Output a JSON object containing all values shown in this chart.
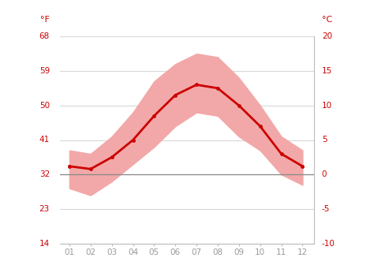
{
  "months": [
    1,
    2,
    3,
    4,
    5,
    6,
    7,
    8,
    9,
    10,
    11,
    12
  ],
  "month_labels": [
    "01",
    "02",
    "03",
    "04",
    "05",
    "06",
    "07",
    "08",
    "09",
    "10",
    "11",
    "12"
  ],
  "mean_temp_c": [
    1.2,
    0.8,
    2.5,
    5.0,
    8.5,
    11.5,
    13.0,
    12.5,
    10.0,
    7.0,
    3.0,
    1.2
  ],
  "max_temp_c": [
    3.5,
    3.0,
    5.5,
    9.0,
    13.5,
    16.0,
    17.5,
    17.0,
    14.0,
    10.0,
    5.5,
    3.5
  ],
  "min_temp_c": [
    -2.0,
    -3.0,
    -1.0,
    1.5,
    4.0,
    7.0,
    9.0,
    8.5,
    5.5,
    3.5,
    0.0,
    -1.5
  ],
  "ylim_c": [
    -10,
    20
  ],
  "yticks_c": [
    -10,
    -5,
    0,
    5,
    10,
    15,
    20
  ],
  "yticks_f": [
    14,
    23,
    32,
    41,
    50,
    59,
    68
  ],
  "zero_line_color": "#888888",
  "band_color": "#f2a8a8",
  "line_color": "#cc0000",
  "grid_color": "#d8d8d8",
  "text_color": "#cc0000",
  "tick_color": "#999999",
  "bg_color": "#ffffff",
  "fahrenheit_label": "°F",
  "celsius_label": "°C"
}
